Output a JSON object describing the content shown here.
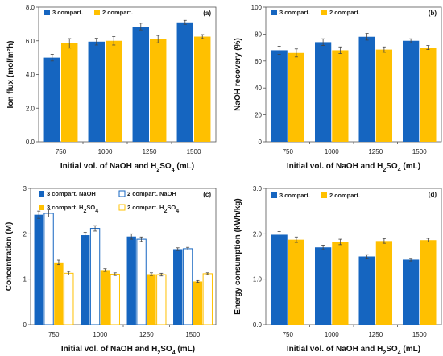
{
  "colors": {
    "blue": "#1565C0",
    "yellow": "#FFC000",
    "axis": "#555555",
    "errorbar": "#444444"
  },
  "chart_data": [
    {
      "panel": "(a)",
      "type": "bar",
      "categories": [
        "750",
        "1000",
        "1250",
        "1500"
      ],
      "ylabel": "Ion flux (mol/m²h)",
      "xlabel": {
        "pre": "Initial vol. of NaOH and H",
        "sub": "2",
        "mid": "SO",
        "sub2": "4",
        "post": " (mL)"
      },
      "ylim": [
        0,
        8
      ],
      "yticks": [
        "0.0",
        "2.0",
        "4.0",
        "6.0",
        "8.0"
      ],
      "legend": "top-left",
      "series": [
        {
          "name": "3 compart.",
          "style": "filled",
          "color": "#1565C0",
          "values": [
            5.0,
            5.95,
            6.85,
            7.1
          ],
          "errors": [
            0.2,
            0.2,
            0.2,
            0.12
          ]
        },
        {
          "name": "2 compart.",
          "style": "filled",
          "color": "#FFC000",
          "values": [
            5.85,
            6.0,
            6.1,
            6.25
          ],
          "errors": [
            0.28,
            0.25,
            0.22,
            0.12
          ]
        }
      ]
    },
    {
      "panel": "(b)",
      "type": "bar",
      "categories": [
        "750",
        "1000",
        "1250",
        "1500"
      ],
      "ylabel": "NaOH recovery (%)",
      "xlabel": {
        "pre": "Initial vol. of NaOH and H",
        "sub": "2",
        "mid": "SO",
        "sub2": "4",
        "post": " (mL)"
      },
      "ylim": [
        0,
        100
      ],
      "yticks": [
        "0",
        "20",
        "40",
        "60",
        "80",
        "100"
      ],
      "legend": "top-left",
      "series": [
        {
          "name": "3 compart.",
          "style": "filled",
          "color": "#1565C0",
          "values": [
            68,
            74,
            78,
            75
          ],
          "errors": [
            3,
            2.5,
            2.5,
            1.5
          ]
        },
        {
          "name": "2 compart.",
          "style": "filled",
          "color": "#FFC000",
          "values": [
            66,
            68,
            68.5,
            70
          ],
          "errors": [
            3,
            2.5,
            2,
            1.5
          ]
        }
      ]
    },
    {
      "panel": "(c)",
      "type": "bar",
      "categories": [
        "750",
        "1000",
        "1250",
        "1500"
      ],
      "ylabel": "Concentration (M)",
      "xlabel": {
        "pre": "Initial vol. of NaOH and H",
        "sub": "2",
        "mid": "SO",
        "sub2": "4",
        "post": " (mL)"
      },
      "ylim": [
        0,
        3
      ],
      "yticks": [
        "0",
        "1",
        "2",
        "3"
      ],
      "legend": "top",
      "series": [
        {
          "name": "3 compart. NaOH",
          "label": {
            "pre": "3 compart. NaOH",
            "sub": "",
            "post": ""
          },
          "style": "filled",
          "color": "#1565C0",
          "values": [
            2.42,
            1.97,
            1.94,
            1.66
          ],
          "errors": [
            0.08,
            0.06,
            0.06,
            0.03
          ]
        },
        {
          "name": "2 compart. NaOH",
          "label": {
            "pre": "2 compart. NaOH",
            "sub": "",
            "post": ""
          },
          "style": "outline",
          "color": "#1565C0",
          "values": [
            2.45,
            2.12,
            1.88,
            1.67
          ],
          "errors": [
            0.08,
            0.06,
            0.05,
            0.03
          ]
        },
        {
          "name": "3 compart. H2SO4",
          "label": {
            "pre": "3 compart. H",
            "sub": "2",
            "post": "SO",
            "sub2": "4"
          },
          "style": "filled",
          "color": "#FFC000",
          "values": [
            1.37,
            1.2,
            1.11,
            0.95
          ],
          "errors": [
            0.05,
            0.03,
            0.03,
            0.02
          ]
        },
        {
          "name": "2 compart. H2SO4",
          "label": {
            "pre": "2 compart. H",
            "sub": "2",
            "post": "SO",
            "sub2": "4"
          },
          "style": "outline",
          "color": "#FFC000",
          "values": [
            1.13,
            1.11,
            1.1,
            1.12
          ],
          "errors": [
            0.04,
            0.03,
            0.03,
            0.02
          ]
        }
      ]
    },
    {
      "panel": "(d)",
      "type": "bar",
      "categories": [
        "750",
        "1000",
        "1250",
        "1500"
      ],
      "ylabel": "Energy consumption (kWh/kg)",
      "xlabel": {
        "pre": "Initial vol. of NaOH and H",
        "sub": "2",
        "mid": "SO",
        "sub2": "4",
        "post": " (mL)"
      },
      "ylim": [
        0,
        3
      ],
      "yticks": [
        "0.0",
        "1.0",
        "2.0",
        "3.0"
      ],
      "legend": "top-left",
      "series": [
        {
          "name": "3 compart.",
          "style": "filled",
          "color": "#1565C0",
          "values": [
            1.98,
            1.7,
            1.5,
            1.43
          ],
          "errors": [
            0.07,
            0.05,
            0.04,
            0.03
          ]
        },
        {
          "name": "2 compart.",
          "style": "filled",
          "color": "#FFC000",
          "values": [
            1.87,
            1.82,
            1.84,
            1.86
          ],
          "errors": [
            0.06,
            0.06,
            0.05,
            0.04
          ]
        }
      ]
    }
  ]
}
